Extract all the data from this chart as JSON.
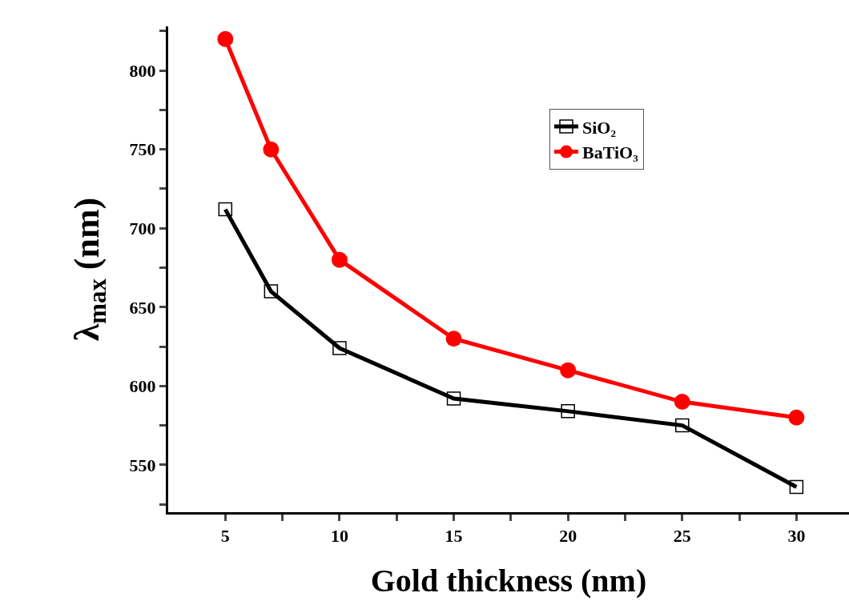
{
  "chart_data": {
    "type": "line",
    "xlabel": "Gold thickness (nm)",
    "ylabel": "λ$_{max}$ (nm)",
    "x": [
      5,
      7,
      10,
      15,
      20,
      25,
      30
    ],
    "series": [
      {
        "name": "SiO₂",
        "color": "#000000",
        "marker": "square",
        "values": [
          712,
          660,
          624,
          592,
          584,
          575,
          536
        ]
      },
      {
        "name": "BaTiO₃",
        "color": "#ff0000",
        "marker": "circle",
        "values": [
          820,
          750,
          680,
          630,
          610,
          590,
          580
        ]
      }
    ],
    "xlim": [
      2.5,
      32.3
    ],
    "xticks": [
      5,
      {
        "value": 7.5,
        "label": null
      },
      10,
      {
        "value": 12.5,
        "label": null
      },
      15,
      {
        "value": 17.5,
        "label": null
      },
      20,
      {
        "value": 22.5,
        "label": null
      },
      25,
      {
        "value": 27.5,
        "label": null
      },
      30
    ],
    "ylim": [
      520,
      828
    ],
    "yticks": [
      {
        "value": 525,
        "label": null
      },
      550,
      {
        "value": 575,
        "label": null
      },
      600,
      {
        "value": 625,
        "label": null
      },
      650,
      {
        "value": 675,
        "label": null
      },
      700,
      {
        "value": 725,
        "label": null
      },
      750,
      {
        "value": 775,
        "label": null
      },
      800,
      {
        "value": 825,
        "label": null
      }
    ],
    "grid": false,
    "legend": "top right",
    "line_style": "solid"
  }
}
